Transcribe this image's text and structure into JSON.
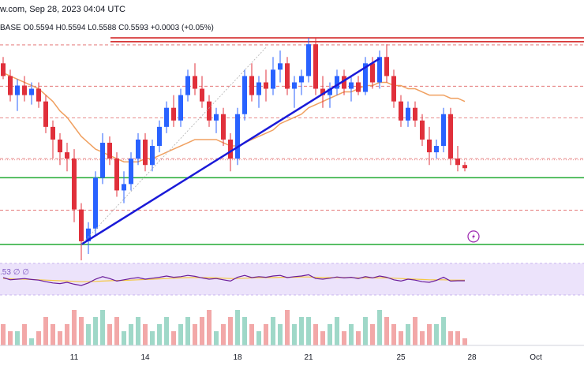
{
  "header": {
    "text": "w.com, Sep 28, 2023 04:04 UTC"
  },
  "ohlc_line": {
    "symbol": "BASE",
    "o": "O0.5594",
    "h": "H0.5594",
    "l": "L0.5588",
    "c": "C0.5593",
    "chg": "+0.0003 (+0.05%)"
  },
  "rsi": {
    "label": ".53",
    "extra1": "∅",
    "extra2": "∅"
  },
  "colors": {
    "up": "#2962ff",
    "down": "#e0303b",
    "ma": "#f0a060",
    "trendline": "#1a1ad8",
    "support": "#22aa33",
    "resistance": "#d11a1a",
    "rsi_line": "#6a1b9a",
    "rsi_ma": "#f5c842",
    "rsi_band": "#ece3fb",
    "vol_up": "#9fd8c8",
    "vol_down": "#f2a8a8"
  },
  "icons": {
    "flash": "lightning-icon"
  },
  "chart_data": {
    "type": "candlestick",
    "x_tick_labels": [
      "11",
      "14",
      "18",
      "21",
      "25",
      "28",
      "Oct"
    ],
    "candles": [
      {
        "o": 0.58,
        "h": 0.582,
        "l": 0.575,
        "c": 0.576
      },
      {
        "o": 0.576,
        "h": 0.578,
        "l": 0.568,
        "c": 0.57
      },
      {
        "o": 0.57,
        "h": 0.575,
        "l": 0.565,
        "c": 0.573
      },
      {
        "o": 0.573,
        "h": 0.576,
        "l": 0.568,
        "c": 0.57
      },
      {
        "o": 0.57,
        "h": 0.574,
        "l": 0.567,
        "c": 0.572
      },
      {
        "o": 0.572,
        "h": 0.574,
        "l": 0.566,
        "c": 0.568
      },
      {
        "o": 0.568,
        "h": 0.57,
        "l": 0.558,
        "c": 0.56
      },
      {
        "o": 0.56,
        "h": 0.562,
        "l": 0.55,
        "c": 0.556
      },
      {
        "o": 0.556,
        "h": 0.558,
        "l": 0.548,
        "c": 0.552
      },
      {
        "o": 0.552,
        "h": 0.555,
        "l": 0.546,
        "c": 0.55
      },
      {
        "o": 0.55,
        "h": 0.553,
        "l": 0.53,
        "c": 0.534
      },
      {
        "o": 0.534,
        "h": 0.536,
        "l": 0.518,
        "c": 0.524
      },
      {
        "o": 0.524,
        "h": 0.53,
        "l": 0.52,
        "c": 0.528
      },
      {
        "o": 0.528,
        "h": 0.546,
        "l": 0.526,
        "c": 0.544
      },
      {
        "o": 0.544,
        "h": 0.558,
        "l": 0.542,
        "c": 0.555
      },
      {
        "o": 0.555,
        "h": 0.557,
        "l": 0.548,
        "c": 0.55
      },
      {
        "o": 0.55,
        "h": 0.552,
        "l": 0.538,
        "c": 0.54
      },
      {
        "o": 0.54,
        "h": 0.546,
        "l": 0.536,
        "c": 0.542
      },
      {
        "o": 0.542,
        "h": 0.552,
        "l": 0.54,
        "c": 0.55
      },
      {
        "o": 0.55,
        "h": 0.558,
        "l": 0.548,
        "c": 0.556
      },
      {
        "o": 0.556,
        "h": 0.558,
        "l": 0.546,
        "c": 0.548
      },
      {
        "o": 0.548,
        "h": 0.556,
        "l": 0.546,
        "c": 0.554
      },
      {
        "o": 0.554,
        "h": 0.562,
        "l": 0.552,
        "c": 0.56
      },
      {
        "o": 0.56,
        "h": 0.568,
        "l": 0.558,
        "c": 0.566
      },
      {
        "o": 0.566,
        "h": 0.57,
        "l": 0.56,
        "c": 0.562
      },
      {
        "o": 0.562,
        "h": 0.572,
        "l": 0.56,
        "c": 0.57
      },
      {
        "o": 0.57,
        "h": 0.578,
        "l": 0.568,
        "c": 0.576
      },
      {
        "o": 0.576,
        "h": 0.58,
        "l": 0.57,
        "c": 0.572
      },
      {
        "o": 0.572,
        "h": 0.576,
        "l": 0.566,
        "c": 0.568
      },
      {
        "o": 0.568,
        "h": 0.57,
        "l": 0.56,
        "c": 0.562
      },
      {
        "o": 0.562,
        "h": 0.566,
        "l": 0.558,
        "c": 0.564
      },
      {
        "o": 0.564,
        "h": 0.566,
        "l": 0.554,
        "c": 0.556
      },
      {
        "o": 0.556,
        "h": 0.558,
        "l": 0.546,
        "c": 0.55
      },
      {
        "o": 0.55,
        "h": 0.566,
        "l": 0.548,
        "c": 0.564
      },
      {
        "o": 0.564,
        "h": 0.578,
        "l": 0.562,
        "c": 0.576
      },
      {
        "o": 0.576,
        "h": 0.58,
        "l": 0.568,
        "c": 0.57
      },
      {
        "o": 0.57,
        "h": 0.576,
        "l": 0.566,
        "c": 0.574
      },
      {
        "o": 0.574,
        "h": 0.578,
        "l": 0.568,
        "c": 0.572
      },
      {
        "o": 0.572,
        "h": 0.582,
        "l": 0.57,
        "c": 0.578
      },
      {
        "o": 0.578,
        "h": 0.584,
        "l": 0.574,
        "c": 0.58
      },
      {
        "o": 0.58,
        "h": 0.582,
        "l": 0.57,
        "c": 0.572
      },
      {
        "o": 0.572,
        "h": 0.576,
        "l": 0.566,
        "c": 0.574
      },
      {
        "o": 0.574,
        "h": 0.578,
        "l": 0.57,
        "c": 0.576
      },
      {
        "o": 0.576,
        "h": 0.588,
        "l": 0.574,
        "c": 0.586
      },
      {
        "o": 0.586,
        "h": 0.588,
        "l": 0.57,
        "c": 0.572
      },
      {
        "o": 0.572,
        "h": 0.576,
        "l": 0.566,
        "c": 0.57
      },
      {
        "o": 0.57,
        "h": 0.574,
        "l": 0.566,
        "c": 0.572
      },
      {
        "o": 0.572,
        "h": 0.578,
        "l": 0.57,
        "c": 0.576
      },
      {
        "o": 0.576,
        "h": 0.578,
        "l": 0.57,
        "c": 0.572
      },
      {
        "o": 0.572,
        "h": 0.576,
        "l": 0.568,
        "c": 0.574
      },
      {
        "o": 0.574,
        "h": 0.576,
        "l": 0.57,
        "c": 0.571
      },
      {
        "o": 0.571,
        "h": 0.582,
        "l": 0.57,
        "c": 0.58
      },
      {
        "o": 0.58,
        "h": 0.582,
        "l": 0.572,
        "c": 0.574
      },
      {
        "o": 0.574,
        "h": 0.584,
        "l": 0.572,
        "c": 0.582
      },
      {
        "o": 0.582,
        "h": 0.586,
        "l": 0.574,
        "c": 0.576
      },
      {
        "o": 0.576,
        "h": 0.578,
        "l": 0.566,
        "c": 0.568
      },
      {
        "o": 0.568,
        "h": 0.57,
        "l": 0.56,
        "c": 0.562
      },
      {
        "o": 0.562,
        "h": 0.568,
        "l": 0.56,
        "c": 0.566
      },
      {
        "o": 0.566,
        "h": 0.568,
        "l": 0.56,
        "c": 0.562
      },
      {
        "o": 0.562,
        "h": 0.564,
        "l": 0.554,
        "c": 0.556
      },
      {
        "o": 0.556,
        "h": 0.56,
        "l": 0.548,
        "c": 0.552
      },
      {
        "o": 0.552,
        "h": 0.556,
        "l": 0.55,
        "c": 0.554
      },
      {
        "o": 0.554,
        "h": 0.566,
        "l": 0.552,
        "c": 0.564
      },
      {
        "o": 0.564,
        "h": 0.566,
        "l": 0.548,
        "c": 0.55
      },
      {
        "o": 0.55,
        "h": 0.554,
        "l": 0.546,
        "c": 0.548
      },
      {
        "o": 0.548,
        "h": 0.549,
        "l": 0.546,
        "c": 0.547
      }
    ],
    "moving_average": [
      0.577,
      0.576,
      0.575,
      0.574,
      0.573,
      0.572,
      0.57,
      0.568,
      0.565,
      0.563,
      0.56,
      0.557,
      0.555,
      0.553,
      0.552,
      0.551,
      0.55,
      0.549,
      0.549,
      0.549,
      0.55,
      0.55,
      0.551,
      0.552,
      0.553,
      0.554,
      0.555,
      0.556,
      0.556,
      0.556,
      0.556,
      0.555,
      0.554,
      0.554,
      0.555,
      0.556,
      0.557,
      0.558,
      0.559,
      0.561,
      0.562,
      0.563,
      0.564,
      0.566,
      0.567,
      0.568,
      0.569,
      0.57,
      0.571,
      0.571,
      0.572,
      0.573,
      0.573,
      0.574,
      0.574,
      0.573,
      0.573,
      0.572,
      0.572,
      0.571,
      0.57,
      0.57,
      0.57,
      0.569,
      0.569,
      0.568
    ],
    "price_levels": {
      "resistance": [
        0.588,
        0.5868
      ],
      "dashed": [
        0.5858,
        0.5728,
        0.5628,
        0.55,
        0.5338
      ],
      "dotted_current": 0.5496,
      "support": [
        0.544,
        0.523
      ]
    },
    "trendlines": [
      {
        "from_index": 11,
        "from_price": 0.523,
        "to_index": 53,
        "to_price": 0.5815,
        "color": "trendline"
      },
      {
        "from_index": 11,
        "from_price": 0.523,
        "to_index": 37,
        "to_price": 0.585,
        "style": "dotted"
      }
    ],
    "rsi": {
      "values": [
        55,
        48,
        50,
        52,
        49,
        47,
        42,
        38,
        36,
        40,
        34,
        30,
        38,
        50,
        58,
        52,
        44,
        48,
        52,
        55,
        50,
        53,
        56,
        60,
        56,
        58,
        62,
        59,
        54,
        50,
        52,
        48,
        44,
        56,
        62,
        55,
        58,
        56,
        60,
        62,
        55,
        58,
        60,
        64,
        52,
        50,
        53,
        57,
        54,
        56,
        52,
        58,
        54,
        60,
        56,
        48,
        44,
        50,
        47,
        42,
        40,
        46,
        56,
        44,
        45,
        45
      ],
      "ma": [
        52,
        51,
        50,
        50,
        49,
        48,
        47,
        46,
        45,
        44,
        43,
        42,
        42,
        43,
        44,
        45,
        46,
        46,
        47,
        48,
        49,
        50,
        51,
        52,
        53,
        54,
        55,
        55,
        55,
        55,
        54,
        53,
        52,
        52,
        53,
        54,
        55,
        55,
        55,
        56,
        56,
        56,
        57,
        57,
        56,
        55,
        55,
        55,
        55,
        55,
        54,
        54,
        54,
        54,
        54,
        53,
        52,
        51,
        50,
        49,
        48,
        48,
        48,
        47,
        47,
        47
      ],
      "band": [
        30,
        70
      ]
    },
    "volume": [
      3,
      2,
      2,
      3,
      1,
      2,
      4,
      3,
      2,
      3,
      5,
      4,
      3,
      4,
      5,
      3,
      4,
      2,
      3,
      4,
      3,
      2,
      3,
      4,
      2,
      3,
      4,
      3,
      4,
      5,
      2,
      3,
      4,
      5,
      4,
      3,
      2,
      3,
      4,
      3,
      5,
      3,
      4,
      4,
      3,
      2,
      3,
      4,
      2,
      3,
      2,
      4,
      3,
      5,
      4,
      3,
      2,
      3,
      4,
      2,
      3,
      3,
      4,
      2,
      2,
      1
    ]
  }
}
